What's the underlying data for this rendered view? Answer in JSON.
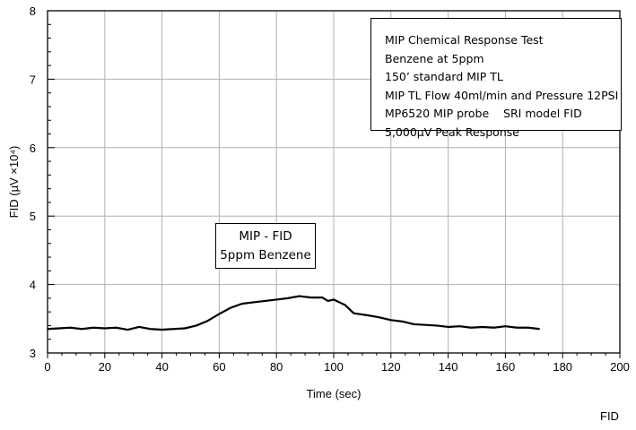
{
  "chart_data": {
    "type": "line",
    "title": "",
    "xlabel": "Time (sec)",
    "ylabel": "FID (µV ×10⁴)",
    "xlim": [
      0,
      200
    ],
    "ylim": [
      3,
      8
    ],
    "xticks": [
      0,
      20,
      40,
      60,
      80,
      100,
      120,
      140,
      160,
      180,
      200
    ],
    "yticks": [
      3,
      4,
      5,
      6,
      7,
      8
    ],
    "grid": true,
    "line_color": "#000000",
    "grid_color": "#b0b0b0",
    "series": [
      {
        "x": [
          0,
          4,
          8,
          12,
          16,
          20,
          24,
          28,
          32,
          36,
          40,
          44,
          48,
          52,
          56,
          60,
          64,
          68,
          72,
          76,
          80,
          84,
          88,
          92,
          96,
          98,
          100,
          104,
          107,
          112,
          116,
          120,
          124,
          128,
          132,
          136,
          140,
          144,
          148,
          152,
          156,
          160,
          164,
          168,
          172
        ],
        "y": [
          3.35,
          3.36,
          3.37,
          3.35,
          3.37,
          3.36,
          3.37,
          3.34,
          3.38,
          3.35,
          3.34,
          3.35,
          3.36,
          3.4,
          3.47,
          3.57,
          3.66,
          3.72,
          3.74,
          3.76,
          3.78,
          3.8,
          3.83,
          3.81,
          3.81,
          3.76,
          3.78,
          3.7,
          3.58,
          3.55,
          3.52,
          3.48,
          3.46,
          3.42,
          3.41,
          3.4,
          3.38,
          3.39,
          3.37,
          3.38,
          3.37,
          3.39,
          3.37,
          3.37,
          3.35
        ]
      }
    ]
  },
  "info_box": [
    "MIP Chemical Response Test",
    "Benzene at 5ppm",
    "150’ standard MIP TL",
    "MIP TL Flow 40ml/min and Pressure 12PSI",
    "MP6520 MIP probe    SRI model FID",
    "5,000µV Peak Response"
  ],
  "series_label": [
    "MIP - FID",
    "5ppm Benzene"
  ],
  "footer_label": "FID"
}
